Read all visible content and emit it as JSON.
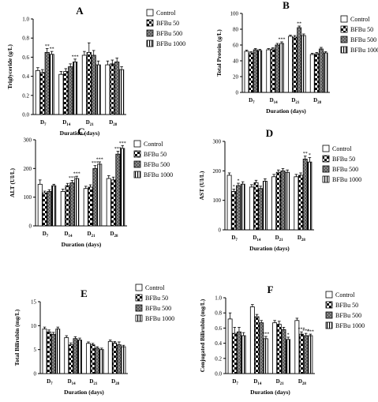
{
  "figure": {
    "tick_prefix": "D"
  },
  "chart_data": [
    {
      "type": "bar",
      "panel_label": "A",
      "title": "",
      "xlabel": "Duration (days)",
      "ylabel": "Triglyceride (g/L)",
      "ylim": [
        0,
        1.0
      ],
      "yticks": [
        0,
        0.2,
        0.4,
        0.6,
        0.8,
        1.0
      ],
      "ytick_labels": [
        "0.0",
        "0.2",
        "0.4",
        "0.6",
        "0.8",
        "1.0"
      ],
      "categories": [
        "7",
        "14",
        "21",
        "28"
      ],
      "legend_position": "right",
      "series": [
        {
          "name": "Control",
          "values": [
            0.46,
            0.42,
            0.62,
            0.52
          ],
          "errors": [
            0.03,
            0.03,
            0.04,
            0.04
          ]
        },
        {
          "name": "BFBu 50",
          "values": [
            0.44,
            0.45,
            0.65,
            0.53
          ],
          "errors": [
            0.03,
            0.03,
            0.1,
            0.04
          ]
        },
        {
          "name": "BFBu 500",
          "values": [
            0.65,
            0.5,
            0.62,
            0.55
          ],
          "errors": [
            0.04,
            0.03,
            0.05,
            0.04
          ]
        },
        {
          "name": "BFBu 1000",
          "values": [
            0.63,
            0.55,
            0.52,
            0.47
          ],
          "errors": [
            0.03,
            0.03,
            0.04,
            0.03
          ]
        }
      ],
      "annotations": [
        {
          "text": "**",
          "category": 0,
          "series": 2
        },
        {
          "text": "**",
          "category": 0,
          "series": 3
        },
        {
          "text": "***",
          "category": 1,
          "series": 3
        }
      ]
    },
    {
      "type": "bar",
      "panel_label": "B",
      "title": "",
      "xlabel": "Duration (days)",
      "ylabel": "Total Protein (g/L)",
      "ylim": [
        0,
        100
      ],
      "yticks": [
        0,
        20,
        40,
        60,
        80,
        100
      ],
      "ytick_labels": [
        "0",
        "20",
        "40",
        "60",
        "80",
        "100"
      ],
      "categories": [
        "7",
        "14",
        "21",
        "28"
      ],
      "legend_position": "right",
      "series": [
        {
          "name": "Control",
          "values": [
            52,
            54,
            71,
            48
          ],
          "errors": [
            1.5,
            1.5,
            1.5,
            1.5
          ]
        },
        {
          "name": "BFBu 50",
          "values": [
            50,
            55,
            70,
            49
          ],
          "errors": [
            1.5,
            1.5,
            2,
            1.5
          ]
        },
        {
          "name": "BFBu 500",
          "values": [
            54,
            60,
            82,
            55
          ],
          "errors": [
            1.5,
            2,
            2,
            2
          ]
        },
        {
          "name": "BFBu 1000",
          "values": [
            53,
            62,
            72,
            50
          ],
          "errors": [
            1.5,
            2,
            2,
            1.5
          ]
        }
      ],
      "annotations": [
        {
          "text": "***",
          "category": 1,
          "series": 3
        },
        {
          "text": "**",
          "category": 2,
          "series": 2
        }
      ]
    },
    {
      "type": "bar",
      "panel_label": "C",
      "title": "",
      "xlabel": "Duration (days)",
      "ylabel": "ALT (UI/L)",
      "ylim": [
        0,
        300
      ],
      "yticks": [
        0,
        100,
        200,
        300
      ],
      "ytick_labels": [
        "0",
        "100",
        "200",
        "300"
      ],
      "categories": [
        "7",
        "14",
        "21",
        "28"
      ],
      "legend_position": "right",
      "series": [
        {
          "name": "Control",
          "values": [
            145,
            120,
            130,
            165
          ],
          "errors": [
            15,
            8,
            8,
            10
          ]
        },
        {
          "name": "BFBu 50",
          "values": [
            115,
            140,
            135,
            160
          ],
          "errors": [
            6,
            8,
            8,
            10
          ]
        },
        {
          "name": "BFBu 500",
          "values": [
            120,
            150,
            200,
            250
          ],
          "errors": [
            6,
            8,
            10,
            10
          ]
        },
        {
          "name": "BFBu 1000",
          "values": [
            140,
            165,
            215,
            270
          ],
          "errors": [
            5,
            8,
            8,
            10
          ]
        }
      ],
      "annotations": [
        {
          "text": "***",
          "category": 1,
          "series": 2
        },
        {
          "text": "***",
          "category": 1,
          "series": 3
        },
        {
          "text": "***",
          "category": 2,
          "series": 2
        },
        {
          "text": "***",
          "category": 2,
          "series": 3
        },
        {
          "text": "***",
          "category": 3,
          "series": 2
        },
        {
          "text": "***",
          "category": 3,
          "series": 3
        }
      ]
    },
    {
      "type": "bar",
      "panel_label": "D",
      "title": "",
      "xlabel": "Duration (days)",
      "ylabel": "AST (UI/L)",
      "ylim": [
        0,
        300
      ],
      "yticks": [
        0,
        100,
        200,
        300
      ],
      "ytick_labels": [
        "0",
        "100",
        "200",
        "300"
      ],
      "categories": [
        "7",
        "14",
        "21",
        "28"
      ],
      "legend_position": "right",
      "series": [
        {
          "name": "Control",
          "values": [
            185,
            145,
            180,
            180
          ],
          "errors": [
            8,
            8,
            8,
            8
          ]
        },
        {
          "name": "BFBu 50",
          "values": [
            130,
            160,
            195,
            185
          ],
          "errors": [
            8,
            8,
            8,
            8
          ]
        },
        {
          "name": "BFBu 500",
          "values": [
            150,
            140,
            200,
            240
          ],
          "errors": [
            8,
            8,
            8,
            10
          ]
        },
        {
          "name": "BFBu 1000",
          "values": [
            155,
            165,
            195,
            230
          ],
          "errors": [
            8,
            8,
            8,
            15
          ]
        }
      ],
      "annotations": [
        {
          "text": "*",
          "category": 0,
          "series": 1
        },
        {
          "text": "*",
          "category": 0,
          "series": 2
        },
        {
          "text": "**",
          "category": 3,
          "series": 2
        },
        {
          "text": "*",
          "category": 3,
          "series": 3
        }
      ]
    },
    {
      "type": "bar",
      "panel_label": "E",
      "title": "",
      "xlabel": "Duration (days)",
      "ylabel": "Total Bilirubin (mg/L)",
      "ylim": [
        0,
        15
      ],
      "yticks": [
        0,
        5,
        10,
        15
      ],
      "ytick_labels": [
        "0",
        "5",
        "10",
        "15"
      ],
      "categories": [
        "7",
        "14",
        "21",
        "28"
      ],
      "legend_position": "right",
      "series": [
        {
          "name": "Control",
          "values": [
            9.3,
            7.5,
            6.3,
            6.7
          ],
          "errors": [
            0.4,
            0.4,
            0.3,
            0.3
          ]
        },
        {
          "name": "BFBu 50",
          "values": [
            8.7,
            6.0,
            6.0,
            6.4
          ],
          "errors": [
            0.4,
            0.4,
            0.3,
            0.3
          ]
        },
        {
          "name": "BFBu 500",
          "values": [
            8.2,
            7.3,
            5.3,
            6.0
          ],
          "errors": [
            0.4,
            0.4,
            0.3,
            0.6
          ]
        },
        {
          "name": "BFBu 1000",
          "values": [
            9.3,
            7.0,
            5.0,
            5.6
          ],
          "errors": [
            0.4,
            0.4,
            0.3,
            0.3
          ]
        }
      ],
      "annotations": []
    },
    {
      "type": "bar",
      "panel_label": "F",
      "title": "",
      "xlabel": "Duration (days)",
      "ylabel": "Conjugated Bilirubin (mg/L)",
      "ylim": [
        0,
        1.0
      ],
      "yticks": [
        0,
        0.2,
        0.4,
        0.6,
        0.8,
        1.0
      ],
      "ytick_labels": [
        "0.0",
        "0.2",
        "0.4",
        "0.6",
        "0.8",
        "1.0"
      ],
      "categories": [
        "7",
        "14",
        "21",
        "28"
      ],
      "legend_position": "right",
      "series": [
        {
          "name": "Control",
          "values": [
            0.72,
            0.88,
            0.67,
            0.7
          ],
          "errors": [
            0.08,
            0.03,
            0.03,
            0.03
          ]
        },
        {
          "name": "BFBu 50",
          "values": [
            0.53,
            0.75,
            0.65,
            0.52
          ],
          "errors": [
            0.08,
            0.03,
            0.04,
            0.03
          ]
        },
        {
          "name": "BFBu 500",
          "values": [
            0.55,
            0.67,
            0.58,
            0.5
          ],
          "errors": [
            0.06,
            0.03,
            0.03,
            0.03
          ]
        },
        {
          "name": "BFBu 1000",
          "values": [
            0.5,
            0.46,
            0.45,
            0.5
          ],
          "errors": [
            0.04,
            0.03,
            0.03,
            0.02
          ]
        }
      ],
      "annotations": [
        {
          "text": "***",
          "category": 1,
          "series": 3
        },
        {
          "text": "*",
          "category": 2,
          "series": 3
        },
        {
          "text": "***",
          "category": 3,
          "series": 1
        },
        {
          "text": "***",
          "category": 3,
          "series": 2
        },
        {
          "text": "***",
          "category": 3,
          "series": 3
        }
      ]
    }
  ]
}
